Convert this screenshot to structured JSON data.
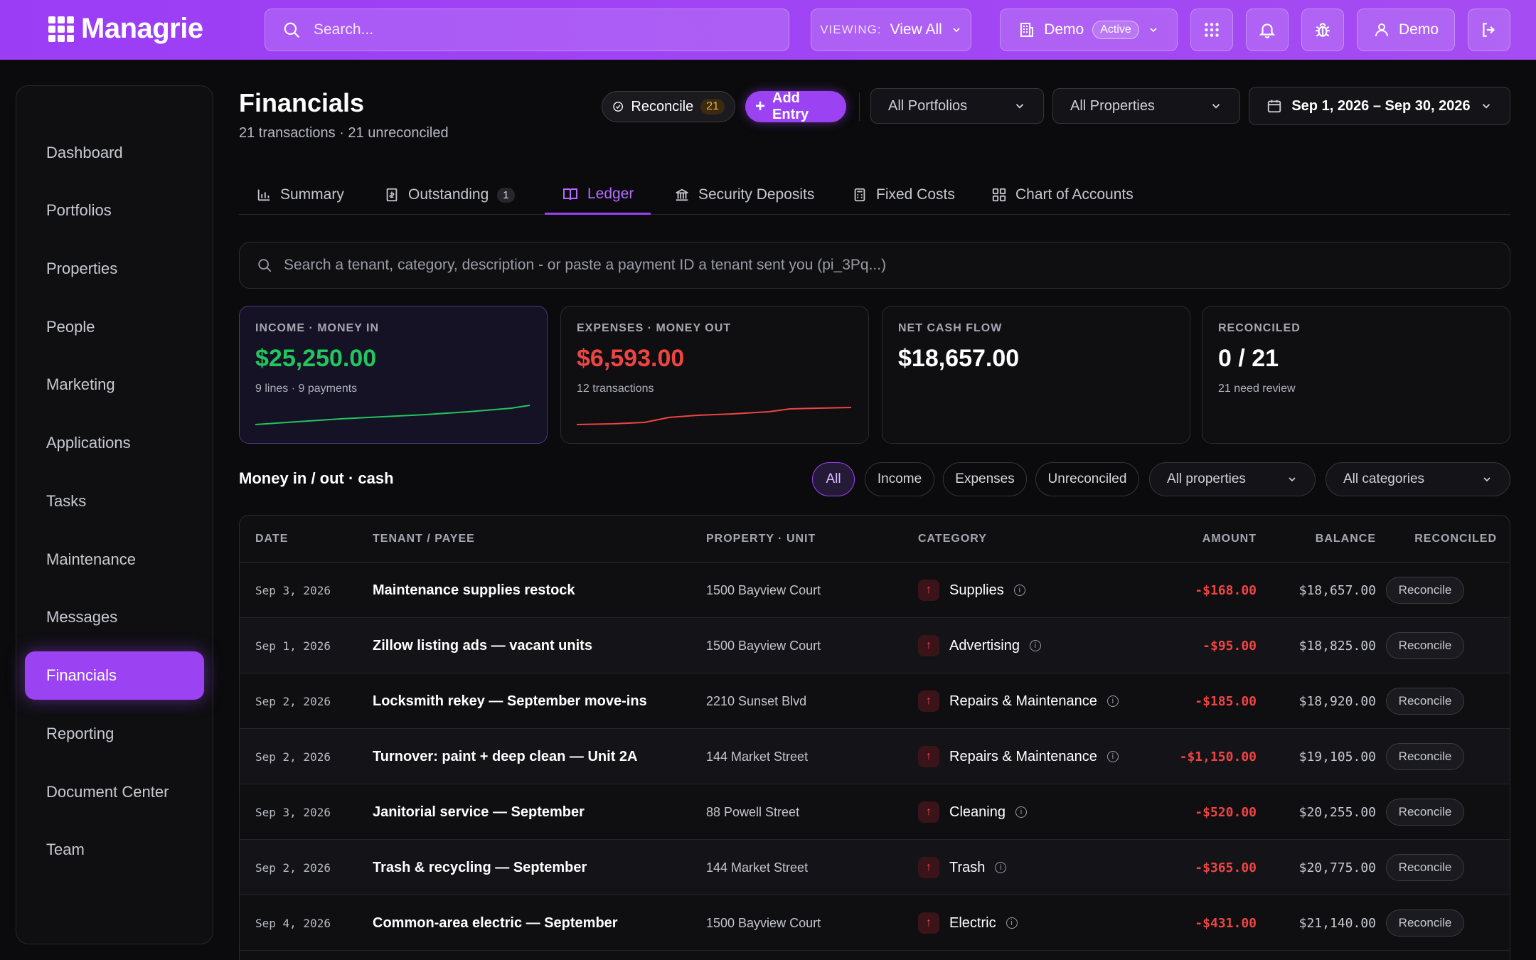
{
  "brand": {
    "name": "Managrie"
  },
  "topbar": {
    "search_placeholder": "Search...",
    "viewing_label": "VIEWING:",
    "viewing_value": "View All",
    "org_name": "Demo",
    "org_status": "Active",
    "user_name": "Demo"
  },
  "sidebar": {
    "items": [
      {
        "label": "Dashboard"
      },
      {
        "label": "Portfolios"
      },
      {
        "label": "Properties"
      },
      {
        "label": "People"
      },
      {
        "label": "Marketing"
      },
      {
        "label": "Applications"
      },
      {
        "label": "Tasks"
      },
      {
        "label": "Maintenance"
      },
      {
        "label": "Messages"
      },
      {
        "label": "Financials"
      },
      {
        "label": "Reporting"
      },
      {
        "label": "Document Center"
      },
      {
        "label": "Team"
      }
    ],
    "active_index": 9
  },
  "header": {
    "title": "Financials",
    "subtitle": "21 transactions · 21 unreconciled",
    "reconcile_label": "Reconcile",
    "reconcile_count": "21",
    "add_entry_label": "Add Entry",
    "portfolio_filter": "All Portfolios",
    "property_filter": "All Properties",
    "date_range": "Sep 1, 2026 – Sep 30, 2026"
  },
  "tabs": [
    {
      "label": "Summary"
    },
    {
      "label": "Outstanding",
      "badge": "1"
    },
    {
      "label": "Ledger"
    },
    {
      "label": "Security Deposits"
    },
    {
      "label": "Fixed Costs"
    },
    {
      "label": "Chart of Accounts"
    }
  ],
  "ledger_search": {
    "placeholder": "Search a tenant, category, description - or paste a payment ID a tenant sent you (pi_3Pq...)"
  },
  "cards": [
    {
      "label": "INCOME · MONEY IN",
      "value": "$25,250.00",
      "sub": "9 lines · 9 payments",
      "color": "#22c55e"
    },
    {
      "label": "EXPENSES · MONEY OUT",
      "value": "$6,593.00",
      "sub": "12 transactions",
      "color": "#ef4444"
    },
    {
      "label": "NET CASH FLOW",
      "value": "$18,657.00",
      "sub": "",
      "color": "#ffffff"
    },
    {
      "label": "RECONCILED",
      "value": "0 / 21",
      "sub": "21 need review",
      "color": "#ffffff"
    }
  ],
  "section": {
    "title": "Money in / out · cash"
  },
  "filters": {
    "chips": [
      "All",
      "Income",
      "Expenses",
      "Unreconciled"
    ],
    "property": "All properties",
    "category": "All categories"
  },
  "table": {
    "headers": [
      "DATE",
      "TENANT / PAYEE",
      "PROPERTY · UNIT",
      "CATEGORY",
      "AMOUNT",
      "BALANCE",
      "RECONCILED"
    ],
    "rows": [
      {
        "date": "Sep 3, 2026",
        "payee": "Maintenance supplies restock",
        "property": "1500 Bayview Court",
        "category": "Supplies",
        "amount": "-$168.00",
        "balance": "$18,657.00",
        "action": "Reconcile"
      },
      {
        "date": "Sep 1, 2026",
        "payee": "Zillow listing ads — vacant units",
        "property": "1500 Bayview Court",
        "category": "Advertising",
        "amount": "-$95.00",
        "balance": "$18,825.00",
        "action": "Reconcile"
      },
      {
        "date": "Sep 2, 2026",
        "payee": "Locksmith rekey — September move-ins",
        "property": "2210 Sunset Blvd",
        "category": "Repairs & Maintenance",
        "amount": "-$185.00",
        "balance": "$18,920.00",
        "action": "Reconcile"
      },
      {
        "date": "Sep 2, 2026",
        "payee": "Turnover: paint + deep clean — Unit 2A",
        "property": "144 Market Street",
        "category": "Repairs & Maintenance",
        "amount": "-$1,150.00",
        "balance": "$19,105.00",
        "action": "Reconcile"
      },
      {
        "date": "Sep 3, 2026",
        "payee": "Janitorial service — September",
        "property": "88 Powell Street",
        "category": "Cleaning",
        "amount": "-$520.00",
        "balance": "$20,255.00",
        "action": "Reconcile"
      },
      {
        "date": "Sep 2, 2026",
        "payee": "Trash & recycling — September",
        "property": "144 Market Street",
        "category": "Trash",
        "amount": "-$365.00",
        "balance": "$20,775.00",
        "action": "Reconcile"
      },
      {
        "date": "Sep 4, 2026",
        "payee": "Common-area electric — September",
        "property": "1500 Bayview Court",
        "category": "Electric",
        "amount": "-$431.00",
        "balance": "$21,140.00",
        "action": "Reconcile"
      }
    ]
  },
  "colors": {
    "accent": "#9b42f2",
    "income": "#22c55e",
    "expense": "#ef4444"
  }
}
